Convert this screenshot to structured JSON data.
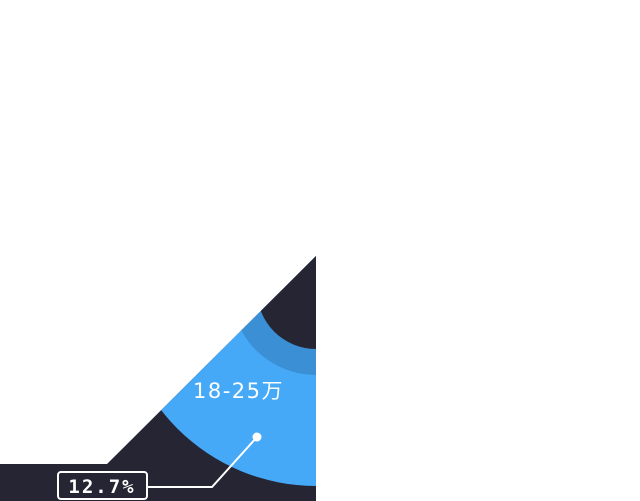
{
  "chart_data": {
    "type": "pie",
    "title": "",
    "visible_slices": [
      {
        "label": "18-25万",
        "value_percent": 12.7,
        "percent_label": "12.7%"
      }
    ],
    "colors": {
      "background_shape": "#252533",
      "ring_inner": "#3b8fd4",
      "ring_outer": "#45a9f7",
      "leader_line": "#ffffff",
      "label_box_bg": "#252533",
      "label_box_border": "#ffffff",
      "text": "#ffffff"
    }
  }
}
